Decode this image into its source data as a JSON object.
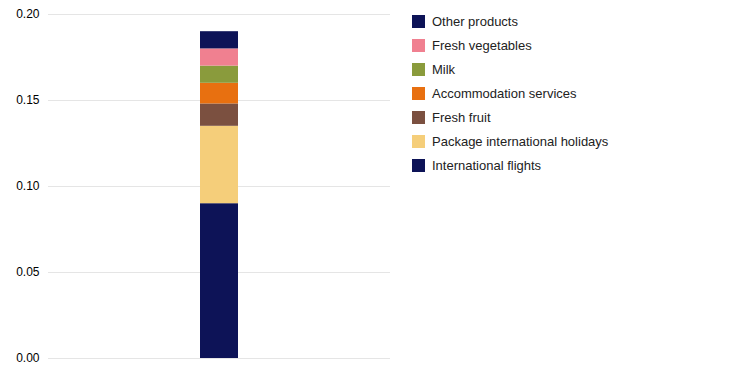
{
  "chart_data": {
    "type": "bar",
    "stacked": true,
    "categories": [
      null
    ],
    "series": [
      {
        "name": "International flights",
        "color": "#0d1357",
        "values": [
          0.09
        ]
      },
      {
        "name": "Package international holidays",
        "color": "#f5ce7a",
        "values": [
          0.045
        ]
      },
      {
        "name": "Fresh fruit",
        "color": "#7b5040",
        "values": [
          0.013
        ]
      },
      {
        "name": "Accommodation services",
        "color": "#e87010",
        "values": [
          0.012
        ]
      },
      {
        "name": "Milk",
        "color": "#8a9b3c",
        "values": [
          0.01
        ]
      },
      {
        "name": "Fresh vegetables",
        "color": "#f08090",
        "values": [
          0.01
        ]
      },
      {
        "name": "Other products",
        "color": "#0d1357",
        "values": [
          0.01
        ]
      }
    ],
    "ylim": [
      0.0,
      0.2
    ],
    "yticks": [
      {
        "value": 0.0,
        "label": "0.00"
      },
      {
        "value": 0.05,
        "label": "0.05"
      },
      {
        "value": 0.1,
        "label": "0.10"
      },
      {
        "value": 0.15,
        "label": "0.15"
      },
      {
        "value": 0.2,
        "label": "0.20"
      }
    ],
    "grid": true,
    "legend": "upper right",
    "tick_labels": "y"
  }
}
